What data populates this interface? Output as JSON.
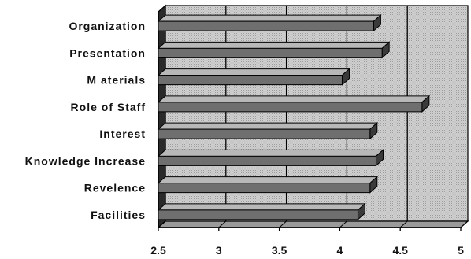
{
  "chart_data": {
    "type": "bar",
    "orientation": "horizontal",
    "style": "3d",
    "categories": [
      "Organization",
      "Presentation",
      "M aterials",
      "Role of Staff",
      "Interest",
      "Knowledge Increase",
      "Revelence",
      "Facilities"
    ],
    "values": [
      4.28,
      4.35,
      4.02,
      4.68,
      4.25,
      4.3,
      4.25,
      4.15
    ],
    "xlim": [
      2.5,
      5
    ],
    "xticks": [
      "2.5",
      "3",
      "3.5",
      "4",
      "4.5",
      "5"
    ],
    "grid": true,
    "colors": {
      "bar": "#6f6f6f",
      "bar_top": "#b8b8b8",
      "bar_end": "#3a3a3a",
      "plot_bg": "#c8c8c8",
      "floor": "#9a9a9a"
    }
  }
}
